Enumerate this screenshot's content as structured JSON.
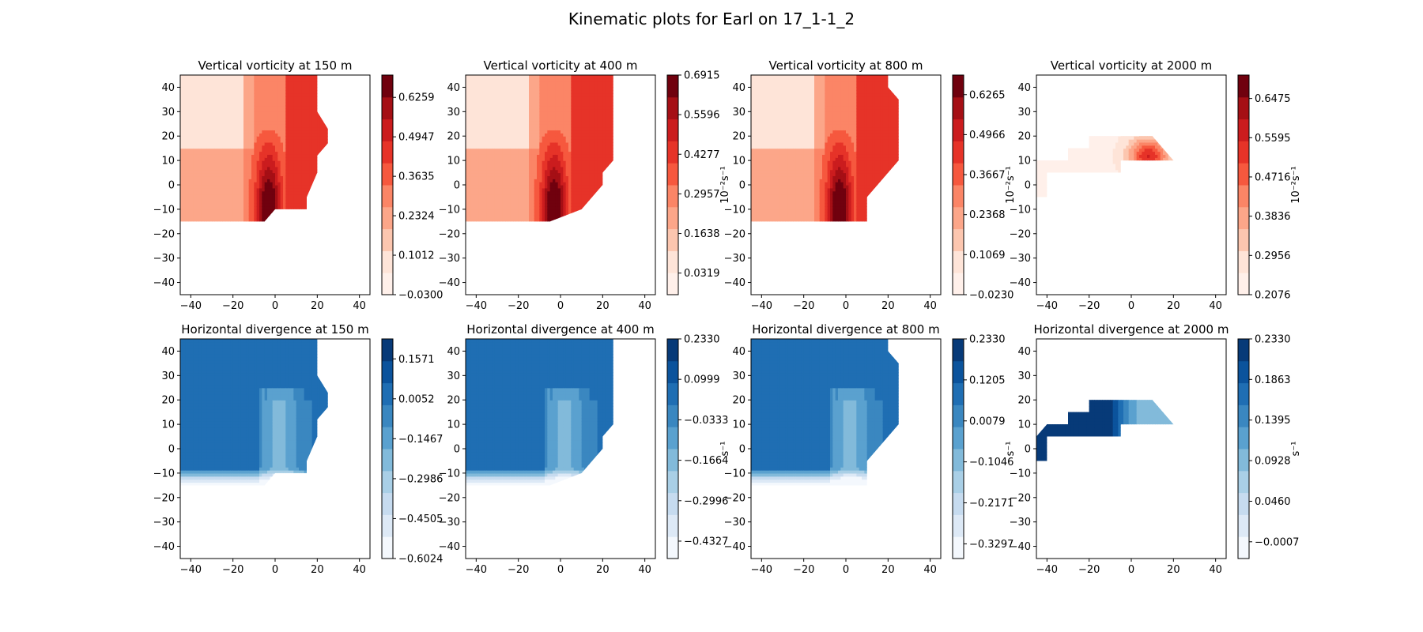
{
  "figure": {
    "suptitle": "Kinematic plots for Earl on 17_1-1_2"
  },
  "chart_data": [
    {
      "type": "heatmap",
      "row": 0,
      "col": 0,
      "title": "Vertical vorticity at 150 m",
      "colormap": "reds",
      "xlim": [
        -45,
        45
      ],
      "ylim": [
        -45,
        45
      ],
      "xticks": [
        "−40",
        "−20",
        "0",
        "20",
        "40"
      ],
      "yticks": [
        "40",
        "30",
        "20",
        "10",
        "0",
        "−10",
        "−20",
        "−30",
        "−40"
      ],
      "colorbar_label": "",
      "colorbar_range": [
        -0.03,
        0.7
      ],
      "colorbar_ticks": [
        "0.6259",
        "0.4947",
        "0.3635",
        "0.2324",
        "0.1012",
        "−0.0300"
      ],
      "colorbar_tick_values": [
        0.6259,
        0.4947,
        0.3635,
        0.2324,
        0.1012,
        -0.03
      ]
    },
    {
      "type": "heatmap",
      "row": 0,
      "col": 1,
      "title": "Vertical vorticity at 400 m",
      "colormap": "reds",
      "xlim": [
        -45,
        45
      ],
      "ylim": [
        -45,
        45
      ],
      "xticks": [
        "−40",
        "−20",
        "0",
        "20",
        "40"
      ],
      "yticks": [
        "40",
        "30",
        "20",
        "10",
        "0",
        "−10",
        "−20",
        "−30",
        "−40"
      ],
      "colorbar_label": "10⁻²s⁻¹",
      "colorbar_range": [
        -0.04,
        0.6915
      ],
      "colorbar_ticks": [
        "0.6915",
        "0.5596",
        "0.4277",
        "0.2957",
        "0.1638",
        "0.0319"
      ],
      "colorbar_tick_values": [
        0.6915,
        0.5596,
        0.4277,
        0.2957,
        0.1638,
        0.0319
      ]
    },
    {
      "type": "heatmap",
      "row": 0,
      "col": 2,
      "title": "Vertical vorticity at 800 m",
      "colormap": "reds",
      "xlim": [
        -45,
        45
      ],
      "ylim": [
        -45,
        45
      ],
      "xticks": [
        "−40",
        "−20",
        "0",
        "20",
        "40"
      ],
      "yticks": [
        "40",
        "30",
        "20",
        "10",
        "0",
        "−10",
        "−20",
        "−30",
        "−40"
      ],
      "colorbar_label": "10⁻²s⁻¹",
      "colorbar_range": [
        -0.023,
        0.69
      ],
      "colorbar_ticks": [
        "0.6265",
        "0.4966",
        "0.3667",
        "0.2368",
        "0.1069",
        "−0.0230"
      ],
      "colorbar_tick_values": [
        0.6265,
        0.4966,
        0.3667,
        0.2368,
        0.1069,
        -0.023
      ]
    },
    {
      "type": "heatmap",
      "row": 0,
      "col": 3,
      "title": "Vertical vorticity at 2000 m",
      "colormap": "reds",
      "xlim": [
        -45,
        45
      ],
      "ylim": [
        -45,
        45
      ],
      "xticks": [
        "−40",
        "−20",
        "0",
        "20",
        "40"
      ],
      "yticks": [
        "40",
        "30",
        "20",
        "10",
        "0",
        "−10",
        "−20",
        "−30",
        "−40"
      ],
      "colorbar_label": "10⁻²s⁻¹",
      "colorbar_range": [
        0.2076,
        0.7
      ],
      "colorbar_ticks": [
        "0.6475",
        "0.5595",
        "0.4716",
        "0.3836",
        "0.2956",
        "0.2076"
      ],
      "colorbar_tick_values": [
        0.6475,
        0.5595,
        0.4716,
        0.3836,
        0.2956,
        0.2076
      ]
    },
    {
      "type": "heatmap",
      "row": 1,
      "col": 0,
      "title": "Horizontal divergence at 150 m",
      "colormap": "blues",
      "xlim": [
        -45,
        45
      ],
      "ylim": [
        -45,
        45
      ],
      "xticks": [
        "−40",
        "−20",
        "0",
        "20",
        "40"
      ],
      "yticks": [
        "40",
        "30",
        "20",
        "10",
        "0",
        "−10",
        "−20",
        "−30",
        "−40"
      ],
      "colorbar_label": "",
      "colorbar_range": [
        -0.6024,
        0.233
      ],
      "colorbar_ticks": [
        "0.1571",
        "0.0052",
        "−0.1467",
        "−0.2986",
        "−0.4505",
        "−0.6024"
      ],
      "colorbar_tick_values": [
        0.1571,
        0.0052,
        -0.1467,
        -0.2986,
        -0.4505,
        -0.6024
      ]
    },
    {
      "type": "heatmap",
      "row": 1,
      "col": 1,
      "title": "Horizontal divergence at 400 m",
      "colormap": "blues",
      "xlim": [
        -45,
        45
      ],
      "ylim": [
        -45,
        45
      ],
      "xticks": [
        "−40",
        "−20",
        "0",
        "20",
        "40"
      ],
      "yticks": [
        "40",
        "30",
        "20",
        "10",
        "0",
        "−10",
        "−20",
        "−30",
        "−40"
      ],
      "colorbar_label": "s⁻¹",
      "colorbar_range": [
        -0.49,
        0.233
      ],
      "colorbar_ticks": [
        "0.2330",
        "0.0999",
        "−0.0333",
        "−0.1664",
        "−0.2996",
        "−0.4327"
      ],
      "colorbar_tick_values": [
        0.233,
        0.0999,
        -0.0333,
        -0.1664,
        -0.2996,
        -0.4327
      ]
    },
    {
      "type": "heatmap",
      "row": 1,
      "col": 2,
      "title": "Horizontal divergence at 800 m",
      "colormap": "blues",
      "xlim": [
        -45,
        45
      ],
      "ylim": [
        -45,
        45
      ],
      "xticks": [
        "−40",
        "−20",
        "0",
        "20",
        "40"
      ],
      "yticks": [
        "40",
        "30",
        "20",
        "10",
        "0",
        "−10",
        "−20",
        "−30",
        "−40"
      ],
      "colorbar_label": "s⁻¹",
      "colorbar_range": [
        -0.37,
        0.233
      ],
      "colorbar_ticks": [
        "0.2330",
        "0.1205",
        "0.0079",
        "−0.1046",
        "−0.2171",
        "−0.3297"
      ],
      "colorbar_tick_values": [
        0.233,
        0.1205,
        0.0079,
        -0.1046,
        -0.2171,
        -0.3297
      ]
    },
    {
      "type": "heatmap",
      "row": 1,
      "col": 3,
      "title": "Horizontal divergence at 2000 m",
      "colormap": "blues",
      "xlim": [
        -45,
        45
      ],
      "ylim": [
        -45,
        45
      ],
      "xticks": [
        "−40",
        "−20",
        "0",
        "20",
        "40"
      ],
      "yticks": [
        "40",
        "30",
        "20",
        "10",
        "0",
        "−10",
        "−20",
        "−30",
        "−40"
      ],
      "colorbar_label": "s⁻¹",
      "colorbar_range": [
        -0.02,
        0.233
      ],
      "colorbar_ticks": [
        "0.2330",
        "0.1863",
        "0.1395",
        "0.0928",
        "0.0460",
        "−0.0007"
      ],
      "colorbar_tick_values": [
        0.233,
        0.1863,
        0.1395,
        0.0928,
        0.046,
        -0.0007
      ]
    }
  ]
}
